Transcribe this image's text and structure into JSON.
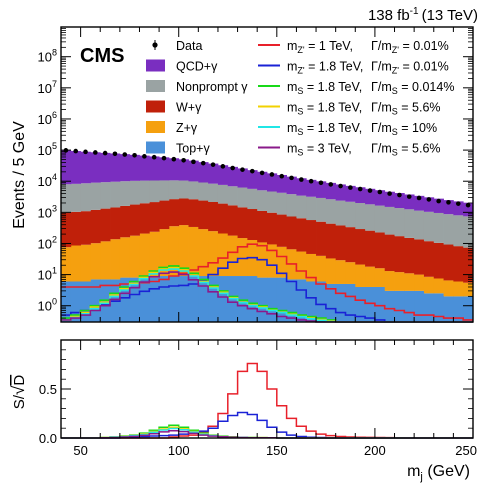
{
  "header": {
    "lumi": "138 fb",
    "lumi_exp": "-1",
    "energy": "(13 TeV)",
    "experiment": "CMS"
  },
  "chart_data": [
    {
      "type": "stacked-histogram",
      "ylabel": "Events / 5 GeV",
      "yscale": "log",
      "ylim": [
        0.3,
        900000000
      ],
      "xlim": [
        40,
        250
      ],
      "yticks": [
        {
          "value": 1,
          "label": "10",
          "exp": "0"
        },
        {
          "value": 10,
          "label": "10",
          "exp": "1"
        },
        {
          "value": 100,
          "label": "10",
          "exp": "2"
        },
        {
          "value": 1000,
          "label": "10",
          "exp": "3"
        },
        {
          "value": 10000,
          "label": "10",
          "exp": "4"
        },
        {
          "value": 100000,
          "label": "10",
          "exp": "5"
        },
        {
          "value": 1000000,
          "label": "10",
          "exp": "6"
        },
        {
          "value": 10000000,
          "label": "10",
          "exp": "7"
        },
        {
          "value": 100000000,
          "label": "10",
          "exp": "8"
        }
      ],
      "bins": [
        40,
        45,
        50,
        55,
        60,
        65,
        70,
        75,
        80,
        85,
        90,
        95,
        100,
        105,
        110,
        115,
        120,
        125,
        130,
        135,
        140,
        145,
        150,
        155,
        160,
        165,
        170,
        175,
        180,
        185,
        190,
        195,
        200,
        205,
        210,
        215,
        220,
        225,
        230,
        235,
        240,
        245,
        250
      ],
      "stack": [
        {
          "name": "Top+γ",
          "color": "#4a90d9",
          "values": [
            6,
            6,
            6,
            7,
            7,
            7,
            8,
            8,
            8,
            8,
            9,
            9,
            9,
            9,
            9,
            9,
            9,
            9,
            9,
            9,
            8,
            8,
            8,
            7,
            7,
            6,
            6,
            5,
            5,
            5,
            4,
            4,
            4,
            3,
            3,
            3,
            3,
            2.5,
            2.5,
            2,
            2,
            2
          ]
        },
        {
          "name": "Z+γ",
          "color": "#f5a00f",
          "values": [
            70,
            80,
            85,
            95,
            110,
            130,
            150,
            170,
            200,
            230,
            280,
            350,
            380,
            330,
            280,
            240,
            200,
            170,
            140,
            120,
            100,
            85,
            70,
            58,
            48,
            40,
            34,
            28,
            24,
            20,
            17,
            14,
            12,
            10,
            9,
            8,
            7,
            6,
            5,
            4.5,
            4,
            3.5
          ]
        },
        {
          "name": "W+γ",
          "color": "#c0200a",
          "values": [
            900,
            950,
            1000,
            1100,
            1200,
            1300,
            1450,
            1600,
            1750,
            1900,
            2100,
            2300,
            2400,
            2300,
            2100,
            1900,
            1700,
            1500,
            1300,
            1150,
            1000,
            880,
            770,
            670,
            590,
            520,
            460,
            400,
            350,
            310,
            270,
            240,
            210,
            180,
            160,
            140,
            125,
            110,
            97,
            86,
            76,
            68
          ]
        },
        {
          "name": "Nonprompt γ",
          "color": "#9aa3a3",
          "values": [
            7000,
            7200,
            7500,
            7800,
            8000,
            8200,
            8400,
            8500,
            8500,
            8400,
            8200,
            8000,
            7700,
            7200,
            6700,
            6200,
            5700,
            5200,
            4800,
            4400,
            4000,
            3700,
            3400,
            3100,
            2800,
            2600,
            2400,
            2200,
            2000,
            1850,
            1700,
            1550,
            1420,
            1300,
            1200,
            1100,
            1000,
            920,
            850,
            780,
            720,
            670
          ]
        },
        {
          "name": "QCD+γ",
          "color": "#7a2ec0",
          "values": [
            90000,
            85000,
            80000,
            76000,
            72000,
            68000,
            64000,
            60000,
            56000,
            52000,
            48000,
            44000,
            40000,
            36000,
            32000,
            28500,
            25000,
            22000,
            19500,
            17000,
            15000,
            13200,
            11600,
            10200,
            9000,
            7900,
            7000,
            6200,
            5500,
            4900,
            4400,
            3900,
            3500,
            3100,
            2800,
            2500,
            2250,
            2000,
            1800,
            1600,
            1450,
            1300
          ]
        }
      ],
      "data": {
        "name": "Data",
        "values": [
          98000,
          93000,
          88000,
          84000,
          80000,
          76000,
          72000,
          68000,
          63000,
          59000,
          55000,
          51000,
          47000,
          42000,
          38000,
          34000,
          30000,
          26500,
          23500,
          21000,
          18500,
          16500,
          14500,
          12800,
          11300,
          10000,
          8900,
          7900,
          7000,
          6250,
          5600,
          5000,
          4500,
          4000,
          3600,
          3200,
          2900,
          2600,
          2300,
          2100,
          1900,
          1700
        ]
      },
      "signals": [
        {
          "name": "m",
          "sub": "Z'",
          "mass": " = 1 TeV,",
          "width": "Γ/m",
          "wsub": "Z'",
          "wval": " = 0.01%",
          "color": "#e8202a",
          "values": [
            4,
            4,
            4,
            4,
            4.5,
            4.5,
            5,
            5,
            5.5,
            6,
            7,
            9,
            11,
            14,
            18,
            24,
            34,
            52,
            78,
            95,
            85,
            60,
            38,
            22,
            13,
            8,
            5,
            3.5,
            2.5,
            2,
            1.5,
            1.2,
            1,
            0.8,
            0.7,
            0.6,
            0.5,
            0.5,
            0.45,
            0.4,
            0.4,
            0.35
          ]
        },
        {
          "name": "m",
          "sub": "Z'",
          "mass": " = 1.8 TeV,",
          "width": "Γ/m",
          "wsub": "Z'",
          "wval": " = 0.01%",
          "color": "#1a22d6",
          "values": [
            0.5,
            0.6,
            0.7,
            0.9,
            1.1,
            1.4,
            1.8,
            2.3,
            2.9,
            3.5,
            4,
            4.3,
            4.5,
            5,
            6.5,
            10,
            16,
            25,
            33,
            35,
            30,
            20,
            11,
            6,
            3.2,
            1.8,
            1.1,
            0.8,
            0.6,
            0.5,
            0.45,
            0.4,
            0.35,
            0.3,
            0.3,
            0.3,
            0.3,
            0.3,
            0.3,
            0.3,
            0.3,
            0.3
          ]
        },
        {
          "name": "m",
          "sub": "S",
          "mass": " = 1.8 TeV,",
          "width": "Γ/m",
          "wsub": "S",
          "wval": " = 0.014%",
          "color": "#18d918",
          "values": [
            0.4,
            0.5,
            0.7,
            1,
            1.5,
            2.5,
            4,
            6,
            9,
            13,
            17,
            19,
            16,
            11,
            7,
            4.5,
            3,
            2,
            1.5,
            1.2,
            1,
            0.8,
            0.7,
            0.6,
            0.5,
            0.45,
            0.4,
            0.35,
            0.3,
            0.3,
            0.3,
            0.3,
            0.3,
            0.3,
            0.3,
            0.3,
            0.3,
            0.3,
            0.3,
            0.3,
            0.3,
            0.3
          ]
        },
        {
          "name": "m",
          "sub": "S",
          "mass": " = 1.8 TeV,",
          "width": "Γ/m",
          "wsub": "S",
          "wval": " = 5.6%",
          "color": "#f2d200",
          "values": [
            0.35,
            0.45,
            0.6,
            0.9,
            1.3,
            2.2,
            3.5,
            5.2,
            8,
            11.5,
            15,
            16.5,
            14,
            9.5,
            6,
            4,
            2.7,
            1.8,
            1.3,
            1.05,
            0.9,
            0.72,
            0.62,
            0.53,
            0.45,
            0.4,
            0.36,
            0.32,
            0.3,
            0.3,
            0.3,
            0.3,
            0.3,
            0.3,
            0.3,
            0.3,
            0.3,
            0.3,
            0.3,
            0.3,
            0.3,
            0.3
          ]
        },
        {
          "name": "m",
          "sub": "S",
          "mass": " = 1.8 TeV,",
          "width": "Γ/m",
          "wsub": "S",
          "wval": " = 10%",
          "color": "#20e6e6",
          "values": [
            0.35,
            0.42,
            0.55,
            0.8,
            1.2,
            2,
            3.2,
            4.8,
            7.4,
            10.5,
            14,
            15,
            13,
            9,
            5.6,
            3.7,
            2.5,
            1.7,
            1.25,
            1,
            0.85,
            0.7,
            0.6,
            0.5,
            0.44,
            0.38,
            0.34,
            0.31,
            0.3,
            0.3,
            0.3,
            0.3,
            0.3,
            0.3,
            0.3,
            0.3,
            0.3,
            0.3,
            0.3,
            0.3,
            0.3,
            0.3
          ]
        },
        {
          "name": "m",
          "sub": "S",
          "mass": " = 3 TeV,",
          "width": "Γ/m",
          "wsub": "S",
          "wval": " = 5.6%",
          "color": "#8a1a8a",
          "values": [
            0.35,
            0.4,
            0.5,
            0.7,
            1,
            1.6,
            2.5,
            3.8,
            5.8,
            8.5,
            11,
            12,
            10,
            6.8,
            4.3,
            2.8,
            1.9,
            1.3,
            1,
            0.8,
            0.65,
            0.55,
            0.45,
            0.4,
            0.35,
            0.32,
            0.3,
            0.3,
            0.3,
            0.3,
            0.3,
            0.3,
            0.3,
            0.3,
            0.3,
            0.3,
            0.3,
            0.3,
            0.3,
            0.3,
            0.3,
            0.3
          ]
        }
      ]
    },
    {
      "type": "histogram-ratio",
      "ylabel_prefix": "S/",
      "ylabel_radicand": "D",
      "ylim": [
        0,
        1.0
      ],
      "yticks": [
        0,
        0.5
      ],
      "ytick_labels": [
        "0.0",
        "0.5"
      ],
      "xlim": [
        40,
        250
      ],
      "xticks": [
        50,
        100,
        150,
        200,
        250
      ],
      "xtick_labels": [
        "50",
        "100",
        "150",
        "200",
        "250"
      ],
      "xlabel_main": "m",
      "xlabel_sub": "j",
      "xlabel_unit": " (GeV)",
      "series_colors": [
        "#e8202a",
        "#1a22d6",
        "#18d918",
        "#f2d200",
        "#20e6e6",
        "#8a1a8a"
      ],
      "series": [
        [
          0,
          0,
          0,
          0,
          0,
          0,
          0,
          0,
          0,
          0,
          0,
          0.01,
          0.02,
          0.03,
          0.06,
          0.12,
          0.25,
          0.45,
          0.68,
          0.76,
          0.68,
          0.5,
          0.33,
          0.2,
          0.12,
          0.07,
          0.04,
          0.025,
          0.015,
          0.01,
          0.008,
          0.006,
          0.005,
          0.004,
          0.003,
          0,
          0,
          0,
          0,
          0,
          0,
          0
        ],
        [
          0,
          0,
          0,
          0,
          0,
          0,
          0.005,
          0.01,
          0.015,
          0.02,
          0.025,
          0.03,
          0.04,
          0.05,
          0.07,
          0.1,
          0.17,
          0.23,
          0.26,
          0.24,
          0.18,
          0.11,
          0.06,
          0.03,
          0.015,
          0.008,
          0.005,
          0,
          0,
          0,
          0,
          0,
          0,
          0,
          0,
          0,
          0,
          0,
          0,
          0,
          0,
          0
        ],
        [
          0,
          0,
          0,
          0,
          0.005,
          0.01,
          0.02,
          0.03,
          0.05,
          0.08,
          0.11,
          0.13,
          0.11,
          0.08,
          0.05,
          0.03,
          0.02,
          0.012,
          0.008,
          0.005,
          0.004,
          0.003,
          0,
          0,
          0,
          0,
          0,
          0,
          0,
          0,
          0,
          0,
          0,
          0,
          0,
          0,
          0,
          0,
          0,
          0,
          0,
          0
        ],
        [
          0,
          0,
          0,
          0,
          0.004,
          0.008,
          0.016,
          0.025,
          0.042,
          0.066,
          0.092,
          0.11,
          0.093,
          0.066,
          0.042,
          0.026,
          0.017,
          0.01,
          0.007,
          0.005,
          0.004,
          0.003,
          0,
          0,
          0,
          0,
          0,
          0,
          0,
          0,
          0,
          0,
          0,
          0,
          0,
          0,
          0,
          0,
          0,
          0,
          0,
          0
        ],
        [
          0,
          0,
          0,
          0,
          0.003,
          0.007,
          0.014,
          0.022,
          0.036,
          0.058,
          0.082,
          0.097,
          0.085,
          0.06,
          0.038,
          0.024,
          0.015,
          0.009,
          0.006,
          0.004,
          0.003,
          0.002,
          0,
          0,
          0,
          0,
          0,
          0,
          0,
          0,
          0,
          0,
          0,
          0,
          0,
          0,
          0,
          0,
          0,
          0,
          0,
          0
        ],
        [
          0,
          0,
          0,
          0,
          0.002,
          0.005,
          0.01,
          0.016,
          0.027,
          0.044,
          0.062,
          0.074,
          0.065,
          0.047,
          0.03,
          0.019,
          0.012,
          0.007,
          0.005,
          0.003,
          0.002,
          0.002,
          0,
          0,
          0,
          0,
          0,
          0,
          0,
          0,
          0,
          0,
          0,
          0,
          0,
          0,
          0,
          0,
          0,
          0,
          0,
          0
        ]
      ]
    }
  ]
}
